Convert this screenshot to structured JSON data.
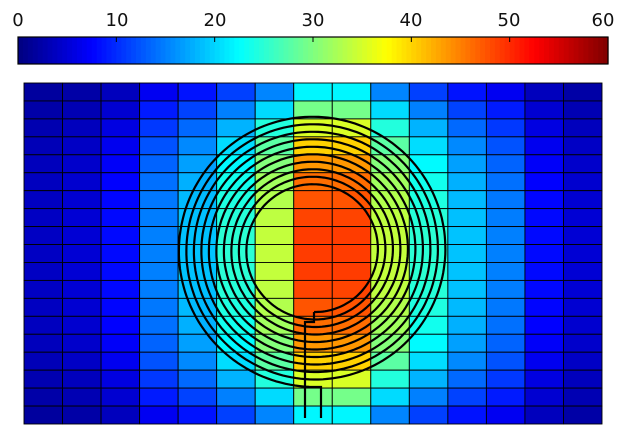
{
  "chart_data": {
    "type": "heatmap",
    "title": "",
    "xlabel": "",
    "ylabel": "",
    "colorbar": {
      "colormap": "jet",
      "range": [
        0,
        60
      ],
      "ticks": [
        0,
        10,
        20,
        30,
        40,
        50,
        60
      ],
      "tick_labels": [
        "0",
        "10",
        "20",
        "30",
        "40",
        "50",
        "60"
      ],
      "position": "top"
    },
    "grid": true,
    "grid_columns": 15,
    "grid_rows": 19,
    "column_profile": [
      4,
      5,
      8,
      15,
      19,
      25,
      34,
      49,
      49,
      34,
      25,
      19,
      15,
      8,
      5
    ],
    "row_profile": [
      0.45,
      0.6,
      0.72,
      0.82,
      0.89,
      0.94,
      0.97,
      0.99,
      1.0,
      1.0,
      1.0,
      0.99,
      0.97,
      0.94,
      0.89,
      0.82,
      0.72,
      0.6,
      0.45
    ],
    "overlay": {
      "shape": "spiral coil",
      "turns": 10,
      "color": "#000000"
    },
    "colors": {
      "background": "#ffffff",
      "grid_line": "#000000",
      "coil": "#000000"
    }
  }
}
